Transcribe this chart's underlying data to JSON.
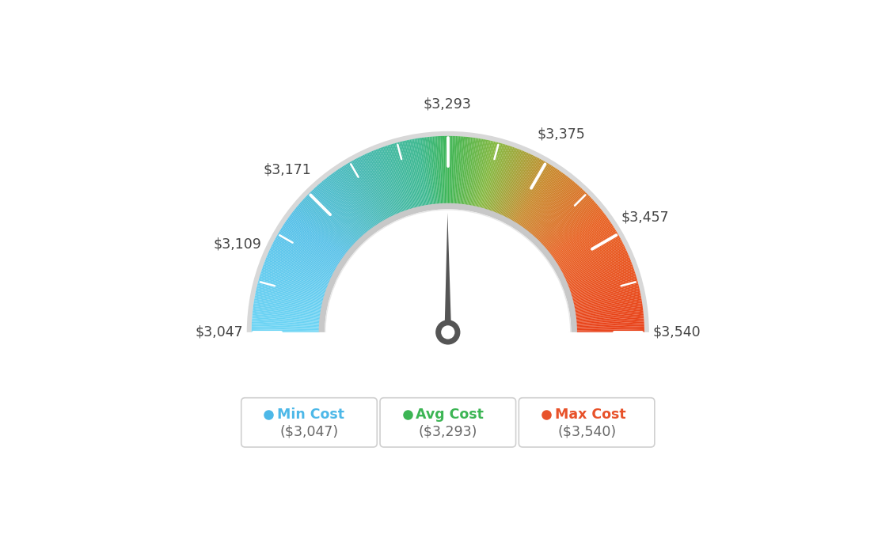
{
  "min_val": 3047,
  "avg_val": 3293,
  "max_val": 3540,
  "tick_labels": [
    "$3,047",
    "$3,109",
    "$3,171",
    "$3,293",
    "$3,375",
    "$3,457",
    "$3,540"
  ],
  "tick_values": [
    3047,
    3109,
    3171,
    3293,
    3375,
    3457,
    3540
  ],
  "legend": [
    {
      "label": "Min Cost",
      "value": "($3,047)",
      "color": "#4db8e8"
    },
    {
      "label": "Avg Cost",
      "value": "($3,293)",
      "color": "#3cb554"
    },
    {
      "label": "Max Cost",
      "value": "($3,540)",
      "color": "#e8522a"
    }
  ],
  "needle_value": 3293,
  "background_color": "#ffffff",
  "color_stops": [
    [
      0.0,
      "#6dd5f5"
    ],
    [
      0.2,
      "#55c0e8"
    ],
    [
      0.35,
      "#45b8b0"
    ],
    [
      0.45,
      "#3cb890"
    ],
    [
      0.5,
      "#3cb554"
    ],
    [
      0.58,
      "#85b840"
    ],
    [
      0.68,
      "#c8882a"
    ],
    [
      0.8,
      "#e86020"
    ],
    [
      1.0,
      "#e84018"
    ]
  ]
}
